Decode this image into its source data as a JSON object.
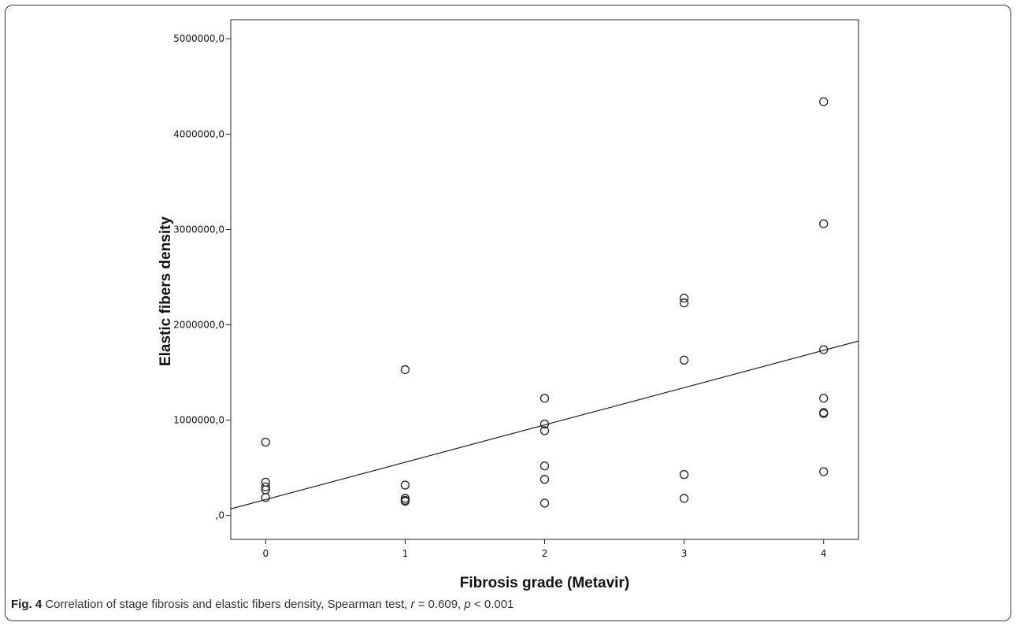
{
  "chart_data": {
    "type": "scatter",
    "title": "",
    "xlabel": "Fibrosis grade (Metavir)",
    "ylabel": "Elastic fibers density",
    "xlim": [
      -0.25,
      4.25
    ],
    "ylim": [
      -250000,
      5200000
    ],
    "x_ticks": [
      0,
      1,
      2,
      3,
      4
    ],
    "x_tick_labels": [
      "0",
      "1",
      "2",
      "3",
      "4"
    ],
    "y_ticks": [
      0,
      1000000,
      2000000,
      3000000,
      4000000,
      5000000
    ],
    "y_tick_labels": [
      ",0",
      "1000000,0",
      "2000000,0",
      "3000000,0",
      "4000000,0",
      "5000000,0"
    ],
    "grid": false,
    "points": [
      {
        "x": 0,
        "y": 770000
      },
      {
        "x": 0,
        "y": 350000
      },
      {
        "x": 0,
        "y": 300000
      },
      {
        "x": 0,
        "y": 270000
      },
      {
        "x": 0,
        "y": 190000
      },
      {
        "x": 1,
        "y": 1530000
      },
      {
        "x": 1,
        "y": 320000
      },
      {
        "x": 1,
        "y": 180000
      },
      {
        "x": 1,
        "y": 160000
      },
      {
        "x": 1,
        "y": 150000
      },
      {
        "x": 2,
        "y": 1230000
      },
      {
        "x": 2,
        "y": 960000
      },
      {
        "x": 2,
        "y": 890000
      },
      {
        "x": 2,
        "y": 520000
      },
      {
        "x": 2,
        "y": 380000
      },
      {
        "x": 2,
        "y": 130000
      },
      {
        "x": 3,
        "y": 2280000
      },
      {
        "x": 3,
        "y": 2230000
      },
      {
        "x": 3,
        "y": 1630000
      },
      {
        "x": 3,
        "y": 430000
      },
      {
        "x": 3,
        "y": 180000
      },
      {
        "x": 4,
        "y": 4340000
      },
      {
        "x": 4,
        "y": 3060000
      },
      {
        "x": 4,
        "y": 1740000
      },
      {
        "x": 4,
        "y": 1230000
      },
      {
        "x": 4,
        "y": 1080000
      },
      {
        "x": 4,
        "y": 1070000
      },
      {
        "x": 4,
        "y": 460000
      }
    ],
    "fit_line": {
      "x": [
        -0.25,
        4.25
      ],
      "y": [
        70000,
        1830000
      ]
    },
    "colors": {
      "points": "#222222",
      "line": "#222222",
      "axes": "#222222"
    }
  },
  "caption": {
    "label": "Fig. 4",
    "text_pre": " Correlation of stage fibrosis and elastic fibers density, Spearman test, ",
    "r_var": "r",
    "r_text": " = 0.609, ",
    "p_var": "p",
    "p_text": " < 0.001"
  }
}
